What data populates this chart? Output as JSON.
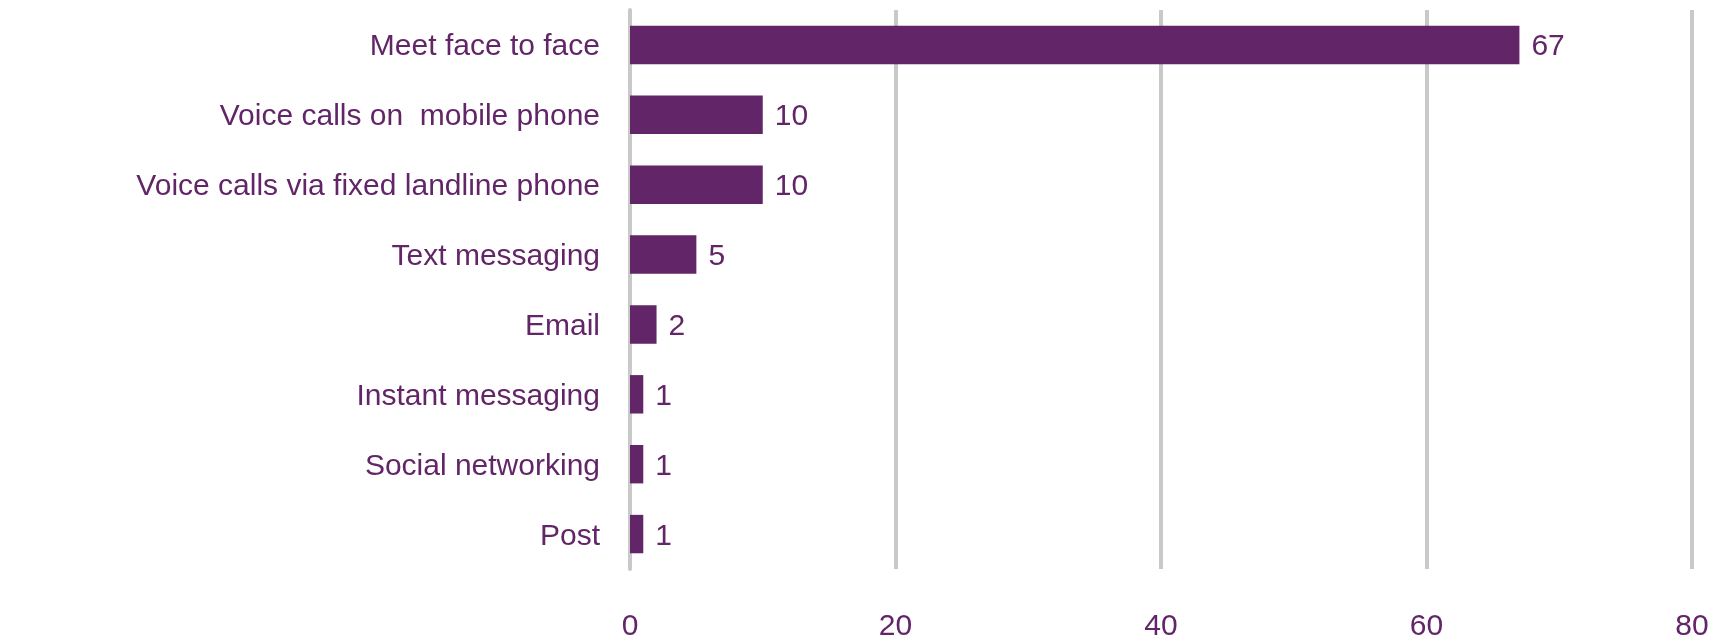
{
  "chart_data": {
    "type": "bar",
    "orientation": "horizontal",
    "categories": [
      "Meet face to face",
      "Voice calls on  mobile phone",
      "Voice calls via fixed landline phone",
      "Text messaging",
      "Email",
      "Instant messaging",
      "Social networking",
      "Post"
    ],
    "values": [
      67,
      10,
      10,
      5,
      2,
      1,
      1,
      1
    ],
    "color": "#622567",
    "xlim": [
      0,
      80
    ],
    "xticks": [
      0,
      20,
      40,
      60,
      80
    ],
    "grid": "x",
    "data_labels": true
  }
}
